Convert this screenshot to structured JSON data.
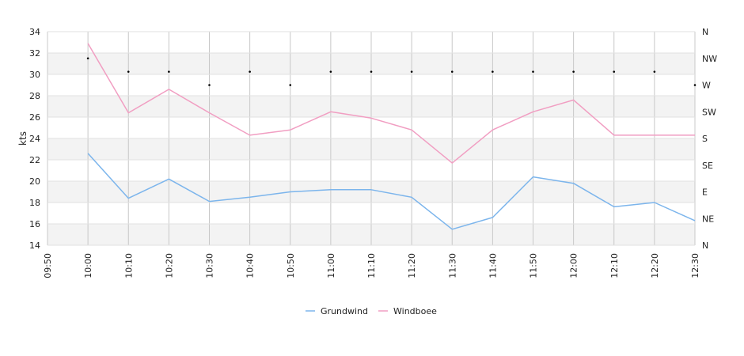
{
  "chart_data": {
    "type": "line",
    "x": [
      "10:00",
      "10:10",
      "10:20",
      "10:30",
      "10:40",
      "10:50",
      "11:00",
      "11:10",
      "11:20",
      "11:30",
      "11:40",
      "11:50",
      "12:00",
      "12:10",
      "12:20",
      "12:30"
    ],
    "x_ticks": [
      "09:50",
      "10:00",
      "10:10",
      "10:20",
      "10:30",
      "10:40",
      "10:50",
      "11:00",
      "11:10",
      "11:20",
      "11:30",
      "11:40",
      "11:50",
      "12:00",
      "12:10",
      "12:20",
      "12:30"
    ],
    "ylabel": "kts",
    "ylim": [
      14,
      34
    ],
    "y_ticks": [
      "14",
      "16",
      "18",
      "20",
      "22",
      "24",
      "26",
      "28",
      "30",
      "32",
      "34"
    ],
    "direction_ticks": [
      "N",
      "NE",
      "E",
      "SE",
      "S",
      "SW",
      "W",
      "NW",
      "N"
    ],
    "grid": true,
    "legend": "bottom-center",
    "series": [
      {
        "name": "Grundwind",
        "color": "#7cb5ec",
        "values": [
          22.6,
          18.4,
          20.2,
          18.1,
          18.5,
          19.0,
          19.2,
          19.2,
          18.5,
          15.5,
          16.6,
          20.4,
          19.8,
          17.6,
          18.0,
          16.3
        ]
      },
      {
        "name": "Windboee",
        "color": "#f19ec2",
        "values": [
          32.9,
          26.4,
          28.6,
          26.4,
          24.3,
          24.8,
          26.5,
          25.9,
          24.8,
          21.7,
          24.8,
          26.5,
          27.6,
          24.3,
          24.3,
          24.3
        ]
      }
    ],
    "wind_direction": {
      "color": "#000000",
      "x": [
        "10:00",
        "10:10",
        "10:20",
        "10:30",
        "10:40",
        "10:50",
        "11:00",
        "11:10",
        "11:20",
        "11:30",
        "11:40",
        "11:50",
        "12:00",
        "12:10",
        "12:20",
        "12:30"
      ],
      "degrees": [
        315,
        292.5,
        292.5,
        270,
        292.5,
        270,
        292.5,
        292.5,
        292.5,
        292.5,
        292.5,
        292.5,
        292.5,
        292.5,
        292.5,
        270
      ]
    }
  }
}
